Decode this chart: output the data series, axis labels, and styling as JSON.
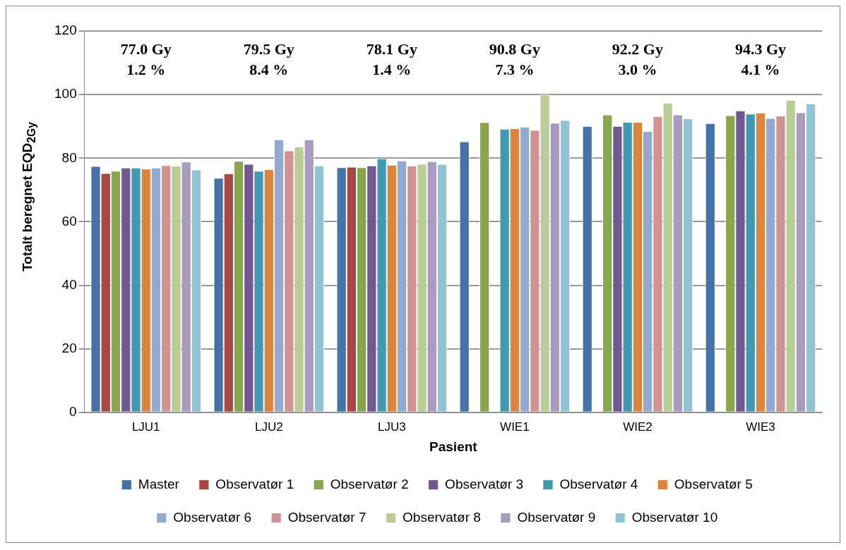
{
  "chart_data": {
    "type": "bar",
    "xlabel": "Pasient",
    "ylabel": "Totalt beregnet EQD$_{2Gy}$",
    "categories": [
      "LJU1",
      "LJU2",
      "LJU3",
      "WIE1",
      "WIE2",
      "WIE3"
    ],
    "series": [
      {
        "name": "Master",
        "color": "#4572a7",
        "values": [
          77.5,
          73.8,
          77.1,
          85.3,
          90.1,
          91.0
        ]
      },
      {
        "name": "Observatør 1",
        "color": "#aa4643",
        "values": [
          75.3,
          75.2,
          77.3,
          null,
          null,
          null
        ]
      },
      {
        "name": "Observatør 2",
        "color": "#89a54e",
        "values": [
          76.0,
          79.1,
          77.1,
          91.3,
          93.7,
          93.5
        ]
      },
      {
        "name": "Observatør 3",
        "color": "#71588f",
        "values": [
          77.0,
          78.2,
          77.7,
          null,
          90.1,
          95.0
        ]
      },
      {
        "name": "Observatør 4",
        "color": "#4198af",
        "values": [
          77.0,
          76.0,
          79.9,
          89.2,
          91.4,
          94.0
        ]
      },
      {
        "name": "Observatør 5",
        "color": "#db843d",
        "values": [
          76.7,
          76.5,
          77.9,
          89.4,
          91.4,
          94.3
        ]
      },
      {
        "name": "Observatør 6",
        "color": "#93a9cf",
        "values": [
          77.0,
          85.9,
          79.2,
          89.9,
          88.5,
          92.6
        ]
      },
      {
        "name": "Observatør 7",
        "color": "#d19392",
        "values": [
          77.8,
          82.4,
          77.6,
          88.9,
          93.2,
          93.4
        ]
      },
      {
        "name": "Observatør 8",
        "color": "#b9cd96",
        "values": [
          77.6,
          83.6,
          78.2,
          100.0,
          97.4,
          98.3
        ]
      },
      {
        "name": "Observatør 9",
        "color": "#a99bbd",
        "values": [
          78.9,
          85.9,
          79.0,
          91.1,
          93.7,
          94.4
        ]
      },
      {
        "name": "Observatør 10",
        "color": "#92c3d4",
        "values": [
          76.4,
          77.7,
          78.1,
          92.0,
          92.5,
          97.2
        ]
      }
    ],
    "ylim": [
      0,
      120
    ],
    "yticks": [
      0,
      20,
      40,
      60,
      80,
      100,
      120
    ],
    "grid": "y",
    "legend": "bottom",
    "annotations": [
      "77.0 Gy\n1.2 %",
      "79.5 Gy\n8.4 %",
      "78.1 Gy\n1.4 %",
      "90.8 Gy\n7.3 %",
      "92.2 Gy\n3.0 %",
      "94.3 Gy\n4.1 %"
    ]
  }
}
